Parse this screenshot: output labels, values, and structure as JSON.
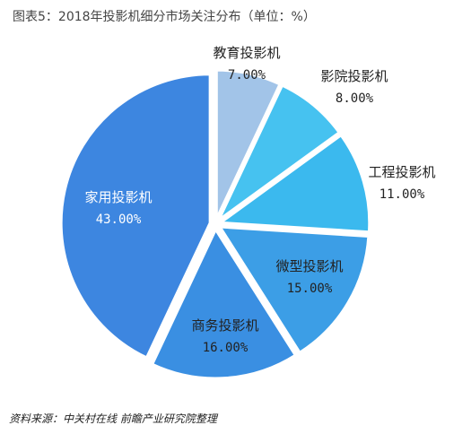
{
  "title": "图表5：2018年投影机细分市场关注分布（单位：%）",
  "source": "资料来源：中关村在线 前瞻产业研究院整理",
  "chart_data": {
    "type": "pie",
    "title": "图表5：2018年投影机细分市场关注分布（单位：%）",
    "unit": "%",
    "slices": [
      {
        "label": "教育投影机",
        "value": 7.0,
        "value_label": "7.00%",
        "color": "#a2c4e8"
      },
      {
        "label": "影院投影机",
        "value": 8.0,
        "value_label": "8.00%",
        "color": "#46c2f0"
      },
      {
        "label": "工程投影机",
        "value": 11.0,
        "value_label": "11.00%",
        "color": "#3bb9ee"
      },
      {
        "label": "微型投影机",
        "value": 15.0,
        "value_label": "15.00%",
        "color": "#3c9ee6"
      },
      {
        "label": "商务投影机",
        "value": 16.0,
        "value_label": "16.00%",
        "color": "#3a8fe2"
      },
      {
        "label": "家用投影机",
        "value": 43.0,
        "value_label": "43.00%",
        "color": "#3d86e0"
      }
    ]
  }
}
